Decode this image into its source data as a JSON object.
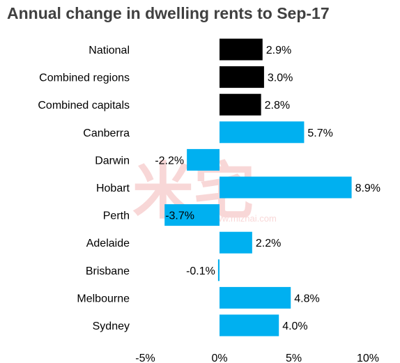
{
  "chart_data": {
    "type": "bar",
    "orientation": "horizontal",
    "title": "Annual change in dwelling rents to Sep-17",
    "categories": [
      "National",
      "Combined regions",
      "Combined capitals",
      "Canberra",
      "Darwin",
      "Hobart",
      "Perth",
      "Adelaide",
      "Brisbane",
      "Melbourne",
      "Sydney"
    ],
    "values": [
      2.9,
      3.0,
      2.8,
      5.7,
      -2.2,
      8.9,
      -3.7,
      2.2,
      -0.1,
      4.8,
      4.0
    ],
    "value_labels": [
      "2.9%",
      "3.0%",
      "2.8%",
      "5.7%",
      "-2.2%",
      "8.9%",
      "-3.7%",
      "2.2%",
      "-0.1%",
      "4.8%",
      "4.0%"
    ],
    "bar_colors": [
      "#000000",
      "#000000",
      "#000000",
      "#00b0f0",
      "#00b0f0",
      "#00b0f0",
      "#00b0f0",
      "#00b0f0",
      "#00b0f0",
      "#00b0f0",
      "#00b0f0"
    ],
    "xlim": [
      -5,
      10
    ],
    "xticks": [
      -5,
      0,
      5,
      10
    ],
    "xtick_labels": [
      "-5%",
      "0%",
      "5%",
      "10%"
    ],
    "grid": false,
    "xlabel": "",
    "ylabel": ""
  },
  "watermark": {
    "text": "米宅",
    "url": "www.mizhai.com"
  }
}
